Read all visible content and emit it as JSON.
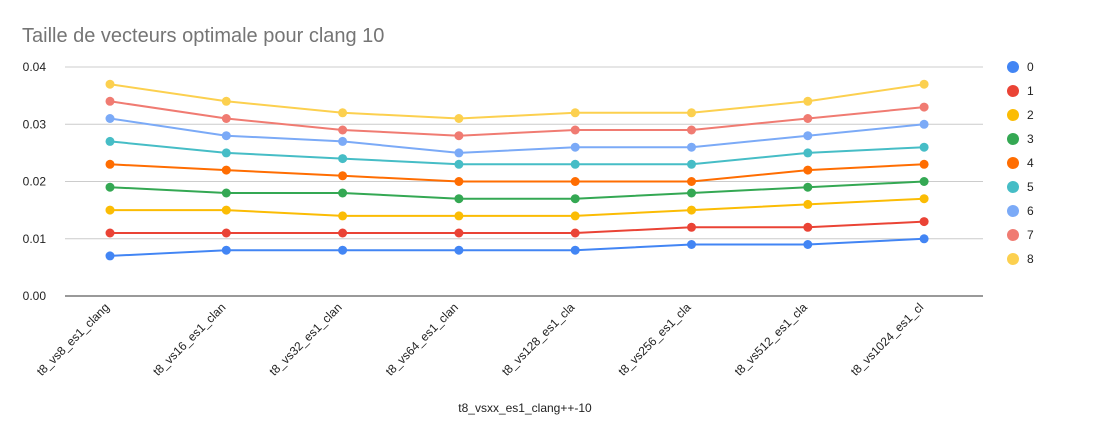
{
  "chart_data": {
    "type": "line",
    "title": "Taille de vecteurs optimale pour clang 10",
    "xlabel": "t8_vsxx_es1_clang++-10",
    "ylabel": "",
    "categories": [
      "t8_vs8_es1_clang",
      "t8_vs16_es1_clan",
      "t8_vs32_es1_clan",
      "t8_vs64_es1_clan",
      "t8_vs128_es1_cla",
      "t8_vs256_es1_cla",
      "t8_vs512_es1_cla",
      "t8_vs1024_es1_cl"
    ],
    "ylim": [
      0,
      0.04
    ],
    "yticks": [
      "0.00",
      "0.01",
      "0.02",
      "0.03",
      "0.04"
    ],
    "grid": true,
    "legend_position": "right",
    "series": [
      {
        "name": "0",
        "color": "#4285f4",
        "values": [
          0.007,
          0.008,
          0.008,
          0.008,
          0.008,
          0.009,
          0.009,
          0.01
        ]
      },
      {
        "name": "1",
        "color": "#ea4335",
        "values": [
          0.011,
          0.011,
          0.011,
          0.011,
          0.011,
          0.012,
          0.012,
          0.013
        ]
      },
      {
        "name": "2",
        "color": "#fbbc04",
        "values": [
          0.015,
          0.015,
          0.014,
          0.014,
          0.014,
          0.015,
          0.016,
          0.017
        ]
      },
      {
        "name": "3",
        "color": "#34a853",
        "values": [
          0.019,
          0.018,
          0.018,
          0.017,
          0.017,
          0.018,
          0.019,
          0.02
        ]
      },
      {
        "name": "4",
        "color": "#ff6d01",
        "values": [
          0.023,
          0.022,
          0.021,
          0.02,
          0.02,
          0.02,
          0.022,
          0.023
        ]
      },
      {
        "name": "5",
        "color": "#46bdc6",
        "values": [
          0.027,
          0.025,
          0.024,
          0.023,
          0.023,
          0.023,
          0.025,
          0.026
        ]
      },
      {
        "name": "6",
        "color": "#7baaf7",
        "values": [
          0.031,
          0.028,
          0.027,
          0.025,
          0.026,
          0.026,
          0.028,
          0.03
        ]
      },
      {
        "name": "7",
        "color": "#f07b72",
        "values": [
          0.034,
          0.031,
          0.029,
          0.028,
          0.029,
          0.029,
          0.031,
          0.033
        ]
      },
      {
        "name": "8",
        "color": "#fcd04f",
        "values": [
          0.037,
          0.034,
          0.032,
          0.031,
          0.032,
          0.032,
          0.034,
          0.037
        ]
      }
    ]
  }
}
